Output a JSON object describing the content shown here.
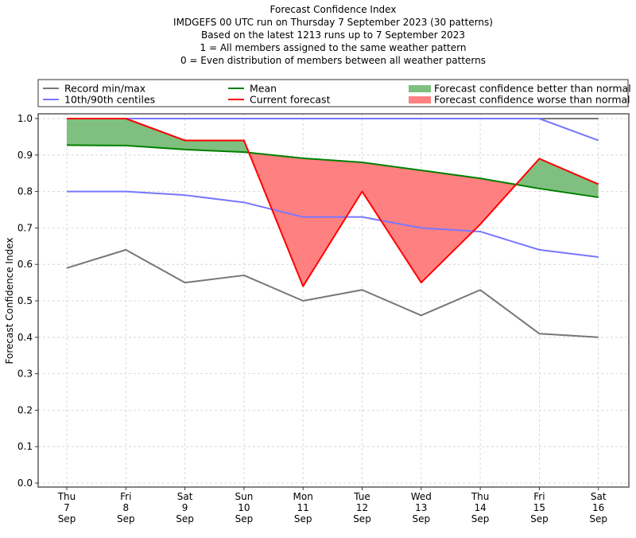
{
  "chart_data": {
    "type": "line",
    "title_lines": [
      "Forecast Confidence Index",
      "IMDGEFS 00 UTC run on Thursday 7 September 2023 (30 patterns)",
      "Based on the latest 1213 runs up to 7 September 2023",
      "1 = All members assigned to the same weather pattern",
      "0 = Even distribution of members between all weather patterns"
    ],
    "xlabel": "",
    "ylabel": "Forecast Confidence Index",
    "ylim": [
      0.0,
      1.0
    ],
    "yticks": [
      "0.0",
      "0.1",
      "0.2",
      "0.3",
      "0.4",
      "0.5",
      "0.6",
      "0.7",
      "0.8",
      "0.9",
      "1.0"
    ],
    "grid": true,
    "legend_placement": "top, above plot",
    "categories": [
      [
        "Thu",
        "7",
        "Sep"
      ],
      [
        "Fri",
        "8",
        "Sep"
      ],
      [
        "Sat",
        "9",
        "Sep"
      ],
      [
        "Sun",
        "10",
        "Sep"
      ],
      [
        "Mon",
        "11",
        "Sep"
      ],
      [
        "Tue",
        "12",
        "Sep"
      ],
      [
        "Wed",
        "13",
        "Sep"
      ],
      [
        "Thu",
        "14",
        "Sep"
      ],
      [
        "Fri",
        "15",
        "Sep"
      ],
      [
        "Sat",
        "16",
        "Sep"
      ]
    ],
    "series": [
      {
        "name": "Record max",
        "legend": "Record min/max",
        "color": "#777777",
        "values": [
          1.0,
          1.0,
          1.0,
          1.0,
          1.0,
          1.0,
          1.0,
          1.0,
          1.0,
          1.0
        ]
      },
      {
        "name": "Record min",
        "legend": "Record min/max",
        "color": "#777777",
        "values": [
          0.59,
          0.64,
          0.55,
          0.57,
          0.5,
          0.53,
          0.46,
          0.53,
          0.41,
          0.4
        ]
      },
      {
        "name": "90th centile",
        "legend": "10th/90th centiles",
        "color": "#7777ff",
        "values": [
          1.0,
          1.0,
          1.0,
          1.0,
          1.0,
          1.0,
          1.0,
          1.0,
          1.0,
          0.94
        ]
      },
      {
        "name": "10th centile",
        "legend": "10th/90th centiles",
        "color": "#7777ff",
        "values": [
          0.8,
          0.8,
          0.79,
          0.77,
          0.73,
          0.73,
          0.7,
          0.69,
          0.64,
          0.62
        ]
      },
      {
        "name": "Mean",
        "legend": "Mean",
        "color": "#008000",
        "values": [
          0.927,
          0.926,
          0.915,
          0.908,
          0.891,
          0.88,
          0.858,
          0.836,
          0.808,
          0.784
        ]
      },
      {
        "name": "Current forecast",
        "legend": "Current forecast",
        "color": "#ff0000",
        "values": [
          1.0,
          1.0,
          0.94,
          0.94,
          0.54,
          0.8,
          0.55,
          0.71,
          0.89,
          0.82
        ]
      }
    ],
    "fills": [
      {
        "name": "Forecast confidence better than normal",
        "color": "#7fbf7f",
        "where": "current > mean"
      },
      {
        "name": "Forecast confidence worse than normal",
        "color": "#ff8080",
        "where": "current < mean"
      }
    ],
    "legend": [
      {
        "label": "Record min/max",
        "kind": "line",
        "color": "#777777"
      },
      {
        "label": "10th/90th centiles",
        "kind": "line",
        "color": "#7777ff"
      },
      {
        "label": "Mean",
        "kind": "line",
        "color": "#008000"
      },
      {
        "label": "Current forecast",
        "kind": "line",
        "color": "#ff0000"
      },
      {
        "label": "Forecast confidence better than normal",
        "kind": "patch",
        "color": "#7fbf7f"
      },
      {
        "label": "Forecast confidence worse than normal",
        "kind": "patch",
        "color": "#ff8080"
      }
    ]
  }
}
